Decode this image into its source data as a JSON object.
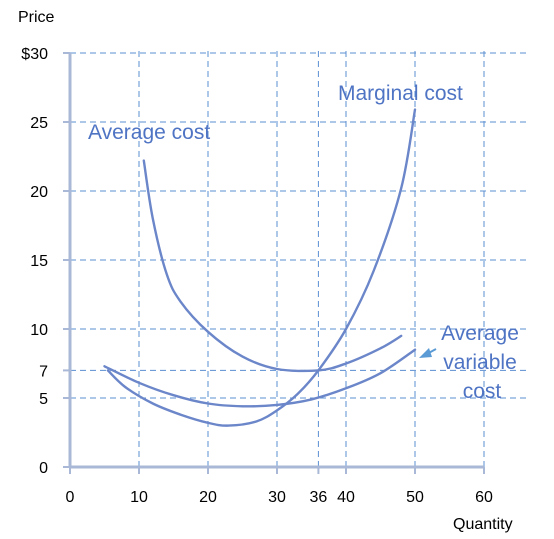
{
  "chart_data": {
    "type": "line",
    "title": "",
    "xlabel": "Quantity",
    "ylabel": "Price",
    "xlim": [
      0,
      60
    ],
    "ylim": [
      0,
      30
    ],
    "x_ticks": [
      0,
      10,
      20,
      30,
      36,
      40,
      50,
      60
    ],
    "x_tick_labels": [
      "0",
      "10",
      "20",
      "30",
      "36",
      "40",
      "50",
      "60"
    ],
    "y_ticks": [
      0,
      5,
      7,
      10,
      15,
      20,
      25,
      30
    ],
    "y_tick_labels": [
      "0",
      "5",
      "7",
      "10",
      "15",
      "20",
      "25",
      "$30"
    ],
    "grid": true,
    "grid_style": "dashed",
    "colors": {
      "curve": "#6b86c9",
      "label": "#4f74c4",
      "grid": "#5b8fd1",
      "axis": "#a9b8d6",
      "arrow": "#5b9bd5"
    },
    "series": [
      {
        "name": "Average cost",
        "x": [
          10.7,
          12,
          14,
          16,
          20,
          25,
          30,
          36,
          40,
          45,
          48
        ],
        "y": [
          22.2,
          18,
          14,
          12,
          9.8,
          8.0,
          7.1,
          7.0,
          7.5,
          8.6,
          9.5
        ]
      },
      {
        "name": "Marginal cost",
        "x": [
          5.5,
          8,
          12,
          16,
          20,
          23,
          27,
          30,
          33,
          36,
          40,
          44,
          48,
          50
        ],
        "y": [
          7.0,
          5.8,
          4.6,
          3.8,
          3.2,
          3.0,
          3.3,
          4.1,
          5.3,
          7.0,
          10.0,
          14.2,
          20.2,
          25.9
        ]
      },
      {
        "name": "Average variable cost",
        "x": [
          5,
          10,
          15,
          20,
          25,
          30,
          35,
          40,
          45,
          50
        ],
        "y": [
          7.3,
          6.1,
          5.2,
          4.6,
          4.4,
          4.5,
          4.9,
          5.7,
          6.8,
          8.5
        ]
      }
    ],
    "labels": {
      "marginal_cost": "Marginal cost",
      "average_cost": "Average cost",
      "avc_line1": "Average",
      "avc_line2": "variable",
      "avc_line3": "cost"
    }
  }
}
